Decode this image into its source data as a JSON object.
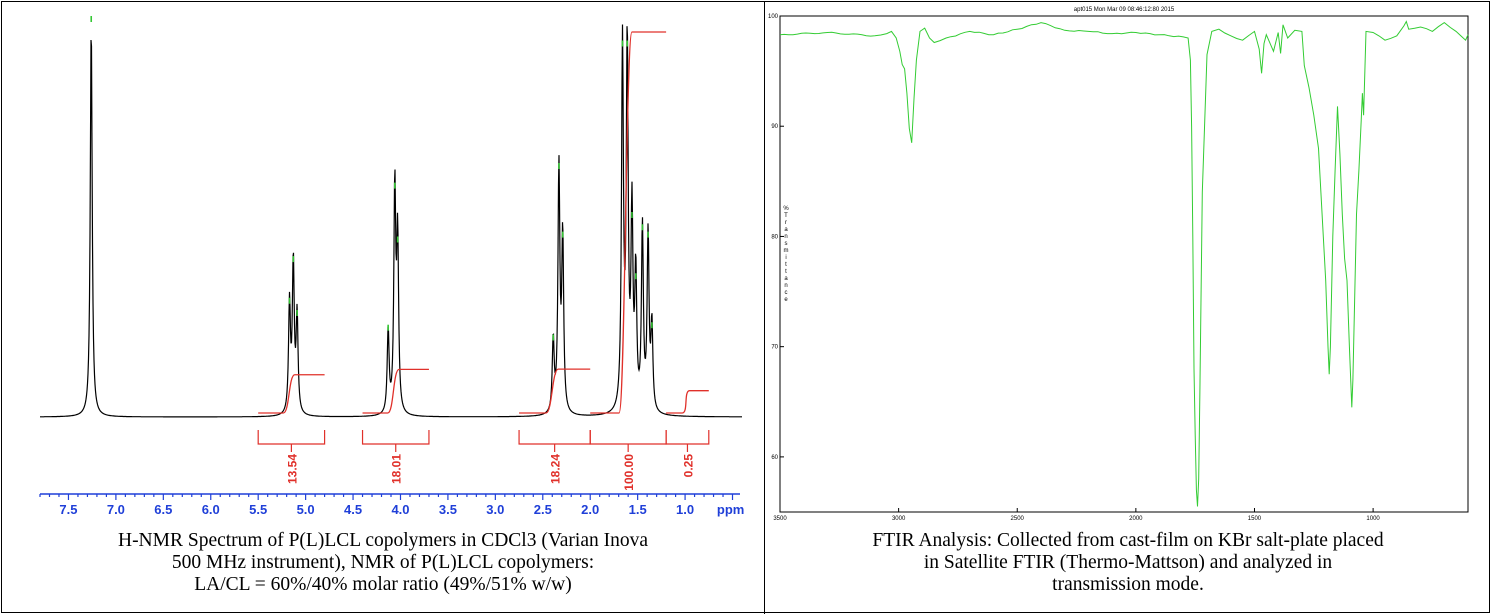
{
  "colors": {
    "nmr_spectrum": "#000000",
    "nmr_integral": "#e0302a",
    "nmr_peak_marker": "#35c735",
    "nmr_axis": "#1f3fd8",
    "ftir_spectrum": "#33cc33",
    "ftir_axis": "#000000"
  },
  "chart_data": [
    {
      "type": "line",
      "xlabel": "ppm",
      "xlim": [
        7.8,
        0.4
      ],
      "x_reversed": true,
      "xticks": [
        "7.5",
        "7.0",
        "6.5",
        "6.0",
        "5.5",
        "5.0",
        "4.5",
        "4.0",
        "3.5",
        "3.0",
        "2.5",
        "2.0",
        "1.5",
        "1.0"
      ],
      "peaks": [
        {
          "ppm": 7.26,
          "height": 1.6
        },
        {
          "ppm": 5.17,
          "height": 0.45
        },
        {
          "ppm": 5.13,
          "height": 0.62
        },
        {
          "ppm": 5.09,
          "height": 0.4
        },
        {
          "ppm": 4.13,
          "height": 0.34
        },
        {
          "ppm": 4.06,
          "height": 0.92
        },
        {
          "ppm": 4.03,
          "height": 0.7
        },
        {
          "ppm": 2.39,
          "height": 0.3
        },
        {
          "ppm": 2.33,
          "height": 1.0
        },
        {
          "ppm": 2.29,
          "height": 0.72
        },
        {
          "ppm": 1.66,
          "height": 1.5
        },
        {
          "ppm": 1.61,
          "height": 1.5
        },
        {
          "ppm": 1.56,
          "height": 0.8
        },
        {
          "ppm": 1.52,
          "height": 0.55
        },
        {
          "ppm": 1.45,
          "height": 0.75
        },
        {
          "ppm": 1.39,
          "height": 0.72
        },
        {
          "ppm": 1.35,
          "height": 0.35
        }
      ],
      "integrals": [
        {
          "label": "13.54",
          "from": 5.5,
          "to": 4.8
        },
        {
          "label": "18.01",
          "from": 4.4,
          "to": 3.7
        },
        {
          "label": "18.24",
          "from": 2.75,
          "to": 2.0
        },
        {
          "label": "100.00",
          "from": 2.0,
          "to": 1.2
        },
        {
          "label": "0.25",
          "from": 1.2,
          "to": 0.75
        }
      ]
    },
    {
      "type": "line",
      "header": "apt015 Mon Mar 09 08:46:12:80 2015",
      "ylabel": "% Transmittance",
      "xlim": [
        3500,
        600
      ],
      "x_reversed": true,
      "ylim": [
        55,
        100
      ],
      "xticks": [
        "3500",
        "3000",
        "2500",
        "2000",
        "1500",
        "1000"
      ],
      "yticks": [
        "100",
        "90",
        "80",
        "70",
        "60"
      ],
      "x": [
        3500,
        3300,
        3100,
        3050,
        3030,
        3010,
        2995,
        2985,
        2975,
        2965,
        2955,
        2945,
        2935,
        2925,
        2910,
        2890,
        2870,
        2850,
        2800,
        2700,
        2600,
        2500,
        2400,
        2300,
        2200,
        2100,
        2000,
        1900,
        1800,
        1780,
        1770,
        1765,
        1760,
        1755,
        1750,
        1745,
        1740,
        1735,
        1730,
        1720,
        1700,
        1680,
        1650,
        1600,
        1550,
        1500,
        1480,
        1470,
        1460,
        1450,
        1420,
        1400,
        1390,
        1380,
        1360,
        1330,
        1300,
        1290,
        1270,
        1250,
        1230,
        1210,
        1200,
        1190,
        1185,
        1180,
        1170,
        1160,
        1150,
        1140,
        1130,
        1120,
        1110,
        1100,
        1090,
        1085,
        1080,
        1070,
        1060,
        1050,
        1045,
        1040,
        1030,
        1000,
        950,
        900,
        870,
        860,
        850,
        800,
        750,
        700,
        650,
        610,
        600
      ],
      "y": [
        98.3,
        98.5,
        98.2,
        98.4,
        98.6,
        98.0,
        96.8,
        95.6,
        95.2,
        93.0,
        89.8,
        88.5,
        92.5,
        96.0,
        98.6,
        98.9,
        98.0,
        97.6,
        98.0,
        98.6,
        98.3,
        98.8,
        99.4,
        98.7,
        98.6,
        98.4,
        98.5,
        98.3,
        98.1,
        98.0,
        96.0,
        90.0,
        80.0,
        68.0,
        62.0,
        57.0,
        55.5,
        58.0,
        66.0,
        84.0,
        96.5,
        98.6,
        98.8,
        98.2,
        97.8,
        98.6,
        97.0,
        94.8,
        97.5,
        98.3,
        96.8,
        98.5,
        96.6,
        99.2,
        98.0,
        98.7,
        98.6,
        95.5,
        93.5,
        91.0,
        88.0,
        80.0,
        76.0,
        70.0,
        67.5,
        70.0,
        80.0,
        86.0,
        91.8,
        87.5,
        82.0,
        78.0,
        76.0,
        70.0,
        64.5,
        67.0,
        72.0,
        82.0,
        86.0,
        90.5,
        93.0,
        91.0,
        98.6,
        98.5,
        97.8,
        98.2,
        99.1,
        99.5,
        98.8,
        99.0,
        98.6,
        99.4,
        98.6,
        97.8,
        98.3
      ]
    }
  ],
  "captions": {
    "nmr": [
      "H-NMR Spectrum of P(L)LCL copolymers in CDCl3 (Varian Inova",
      "500 MHz instrument), NMR of P(L)LCL copolymers:",
      "LA/CL = 60%/40% molar ratio (49%/51% w/w)"
    ],
    "ftir": [
      "FTIR Analysis: Collected from cast-film on KBr salt-plate placed",
      "in Satellite FTIR (Thermo-Mattson) and analyzed in",
      "transmission mode."
    ]
  }
}
